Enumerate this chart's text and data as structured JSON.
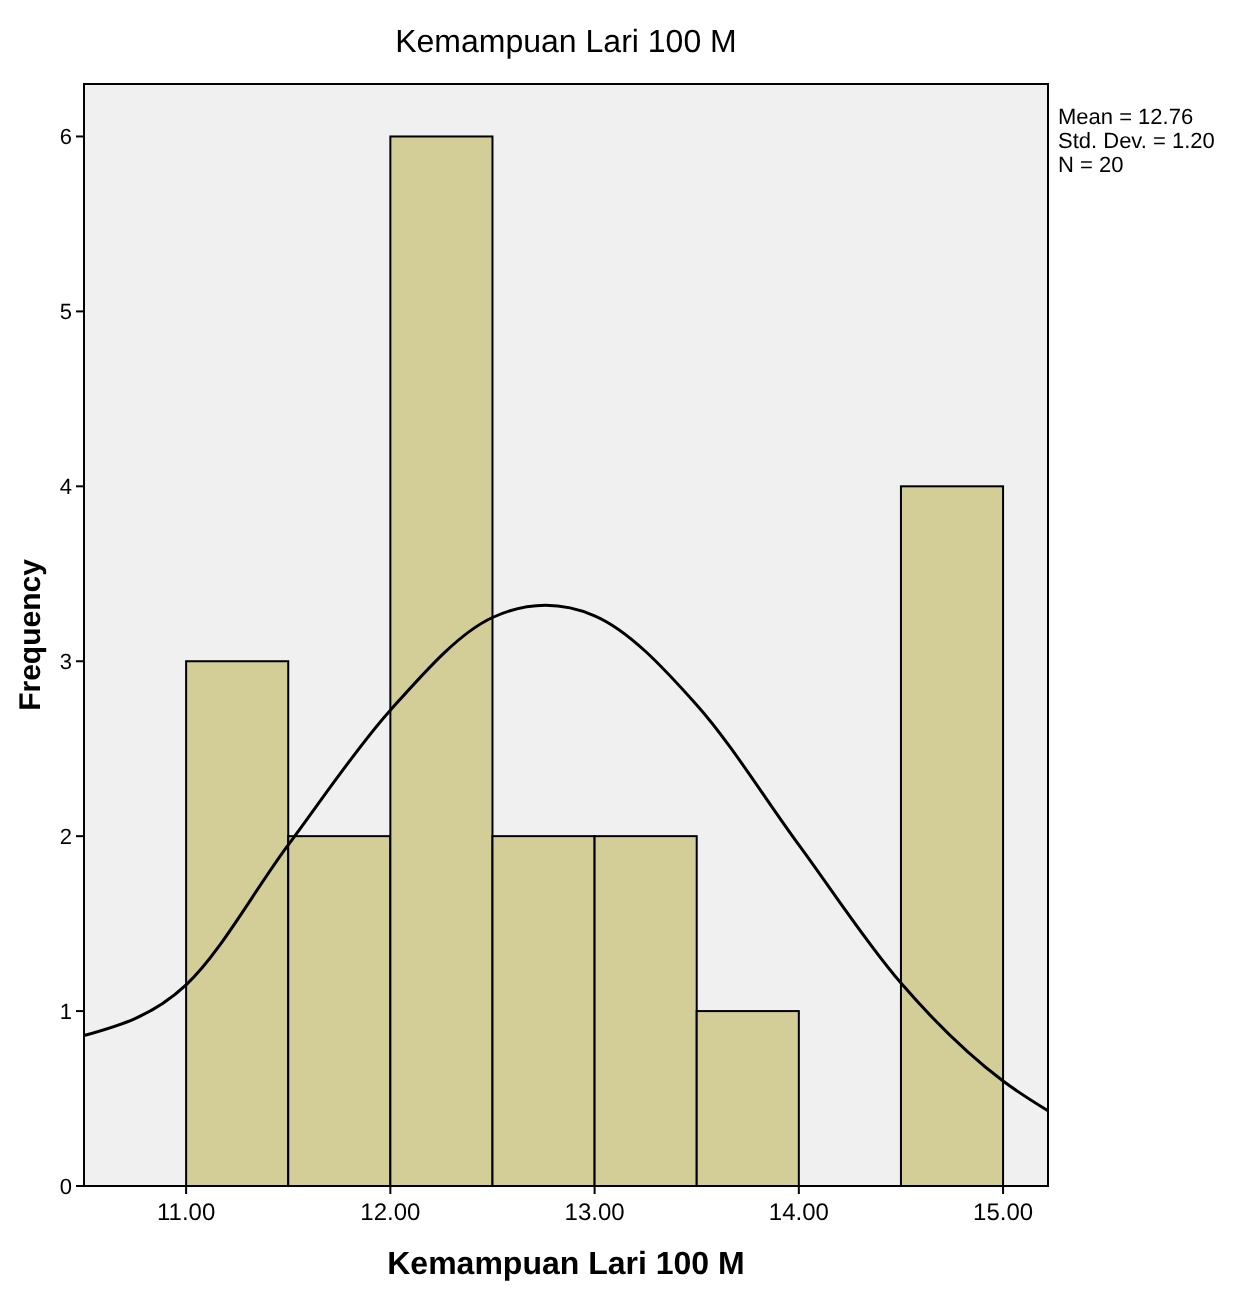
{
  "chart_data": {
    "type": "histogram",
    "title": "Kemampuan Lari 100 M",
    "xlabel": "Kemampuan Lari 100 M",
    "ylabel": "Frequency",
    "bins": [
      11,
      11.5,
      12,
      12.5,
      13,
      13.5,
      14,
      14.5,
      15
    ],
    "values": [
      3,
      2,
      6,
      2,
      2,
      1,
      0,
      4
    ],
    "color": "#d3ce97",
    "series": [
      {
        "type": "line",
        "color": "#000000",
        "x": [
          10.5,
          11,
          11.5,
          12,
          12.5,
          12.76,
          13,
          13.5,
          14,
          14.5,
          15,
          15.22
        ],
        "values": [
          0.86,
          1.15,
          1.95,
          2.72,
          3.25,
          3.32,
          3.26,
          2.75,
          1.95,
          1.16,
          0.6,
          0.43
        ]
      }
    ],
    "xlim": [
      10.5,
      15.22
    ],
    "ylim": [
      0,
      6.3
    ],
    "xticks": [
      {
        "value": 11,
        "label": "11.00"
      },
      {
        "value": 12,
        "label": "12.00"
      },
      {
        "value": 13,
        "label": "13.00"
      },
      {
        "value": 14,
        "label": "14.00"
      },
      {
        "value": 15,
        "label": "15.00"
      }
    ],
    "yticks": [
      0,
      1,
      2,
      3,
      4,
      5,
      6
    ],
    "annotations": [
      "Mean = 12.76",
      "Std. Dev. = 1.20",
      "N = 20"
    ],
    "grid": false
  }
}
